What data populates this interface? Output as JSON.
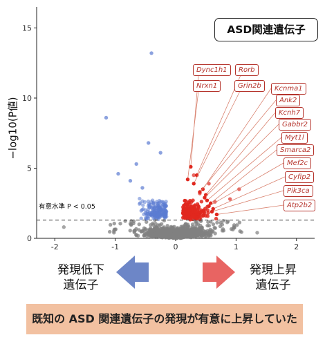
{
  "chart_data": {
    "type": "scatter",
    "title": "",
    "xlabel": "",
    "ylabel": "−log10(P値)",
    "xlim": [
      -2.3,
      2.3
    ],
    "ylim": [
      0,
      16.5
    ],
    "x_ticks": [
      "-2",
      "-1",
      "0",
      "1",
      "2"
    ],
    "y_ticks": [
      "0",
      "5",
      "10",
      "15"
    ],
    "grid": false,
    "threshold": {
      "y": 1.3,
      "label": "有意水準 P < 0.05"
    },
    "inset_title": "ASD関連遺伝子",
    "series": [
      {
        "colors": {
          "down": "#5b7bd1",
          "up": "#e0281f",
          "nonsig": "#808080"
        }
      }
    ],
    "highlight_points": [
      {
        "x": -0.4,
        "y": 13.2
      },
      {
        "x": -1.15,
        "y": 8.6
      },
      {
        "x": -0.45,
        "y": 6.8
      },
      {
        "x": -0.25,
        "y": 6.1
      },
      {
        "x": -0.95,
        "y": 4.6
      },
      {
        "x": -0.75,
        "y": 4.1
      },
      {
        "x": -0.55,
        "y": 3.6
      },
      {
        "x": -0.65,
        "y": 5.3
      },
      {
        "x": 1.05,
        "y": 3.5
      },
      {
        "x": 0.9,
        "y": 2.8
      },
      {
        "x": 0.3,
        "y": 4.5
      },
      {
        "x": 0.55,
        "y": 3.9
      },
      {
        "x": 0.4,
        "y": 3.2
      },
      {
        "x": 0.65,
        "y": 2.6
      },
      {
        "x": -1.85,
        "y": 0.8
      },
      {
        "x": 1.35,
        "y": 0.4
      }
    ],
    "labeled_genes": [
      {
        "name": "Dync1h1",
        "x": 0.25,
        "y": 5.1
      },
      {
        "name": "Rorb",
        "x": 0.35,
        "y": 4.5
      },
      {
        "name": "Nrxn1",
        "x": 0.2,
        "y": 4.2
      },
      {
        "name": "Grin2b",
        "x": 0.3,
        "y": 3.9
      },
      {
        "name": "Kcnma1",
        "x": 0.45,
        "y": 3.5
      },
      {
        "name": "Ank2",
        "x": 0.4,
        "y": 3.3
      },
      {
        "name": "Kcnh7",
        "x": 0.5,
        "y": 3.1
      },
      {
        "name": "Gabbr2",
        "x": 0.48,
        "y": 2.9
      },
      {
        "name": "Myt1l",
        "x": 0.52,
        "y": 2.7
      },
      {
        "name": "Smarca2",
        "x": 0.58,
        "y": 2.5
      },
      {
        "name": "Mef2c",
        "x": 0.55,
        "y": 2.3
      },
      {
        "name": "Cyfip2",
        "x": 0.62,
        "y": 2.1
      },
      {
        "name": "Pik3ca",
        "x": 0.6,
        "y": 1.9
      },
      {
        "name": "Atp2b2",
        "x": 0.68,
        "y": 1.7
      }
    ]
  },
  "arrows": {
    "down_label_1": "発現低下",
    "down_label_2": "遺伝子",
    "up_label_1": "発現上昇",
    "up_label_2": "遺伝子",
    "down_color": "#6d86c7",
    "up_color": "#e86462"
  },
  "banner": {
    "text": "既知の ASD 関連遺伝子の発現が有意に上昇していた",
    "color": "#f2c1a1"
  }
}
